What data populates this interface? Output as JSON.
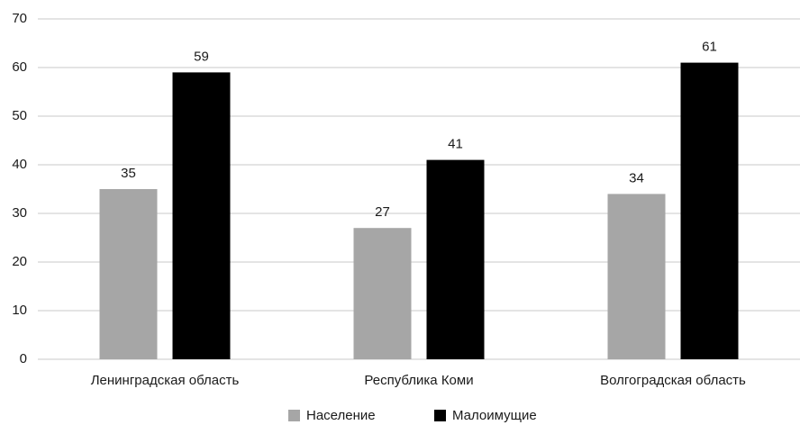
{
  "chart_data": {
    "type": "bar",
    "categories": [
      "Ленинградская область",
      "Республика Коми",
      "Волгоградская область"
    ],
    "series": [
      {
        "name": "Население",
        "color": "#a6a6a6",
        "values": [
          35,
          27,
          34
        ]
      },
      {
        "name": "Малоимущие",
        "color": "#000000",
        "values": [
          59,
          41,
          61
        ]
      }
    ],
    "ylim": [
      0,
      70
    ],
    "yticks": [
      0,
      10,
      20,
      30,
      40,
      50,
      60,
      70
    ],
    "grid": true,
    "legend": "bottom"
  }
}
